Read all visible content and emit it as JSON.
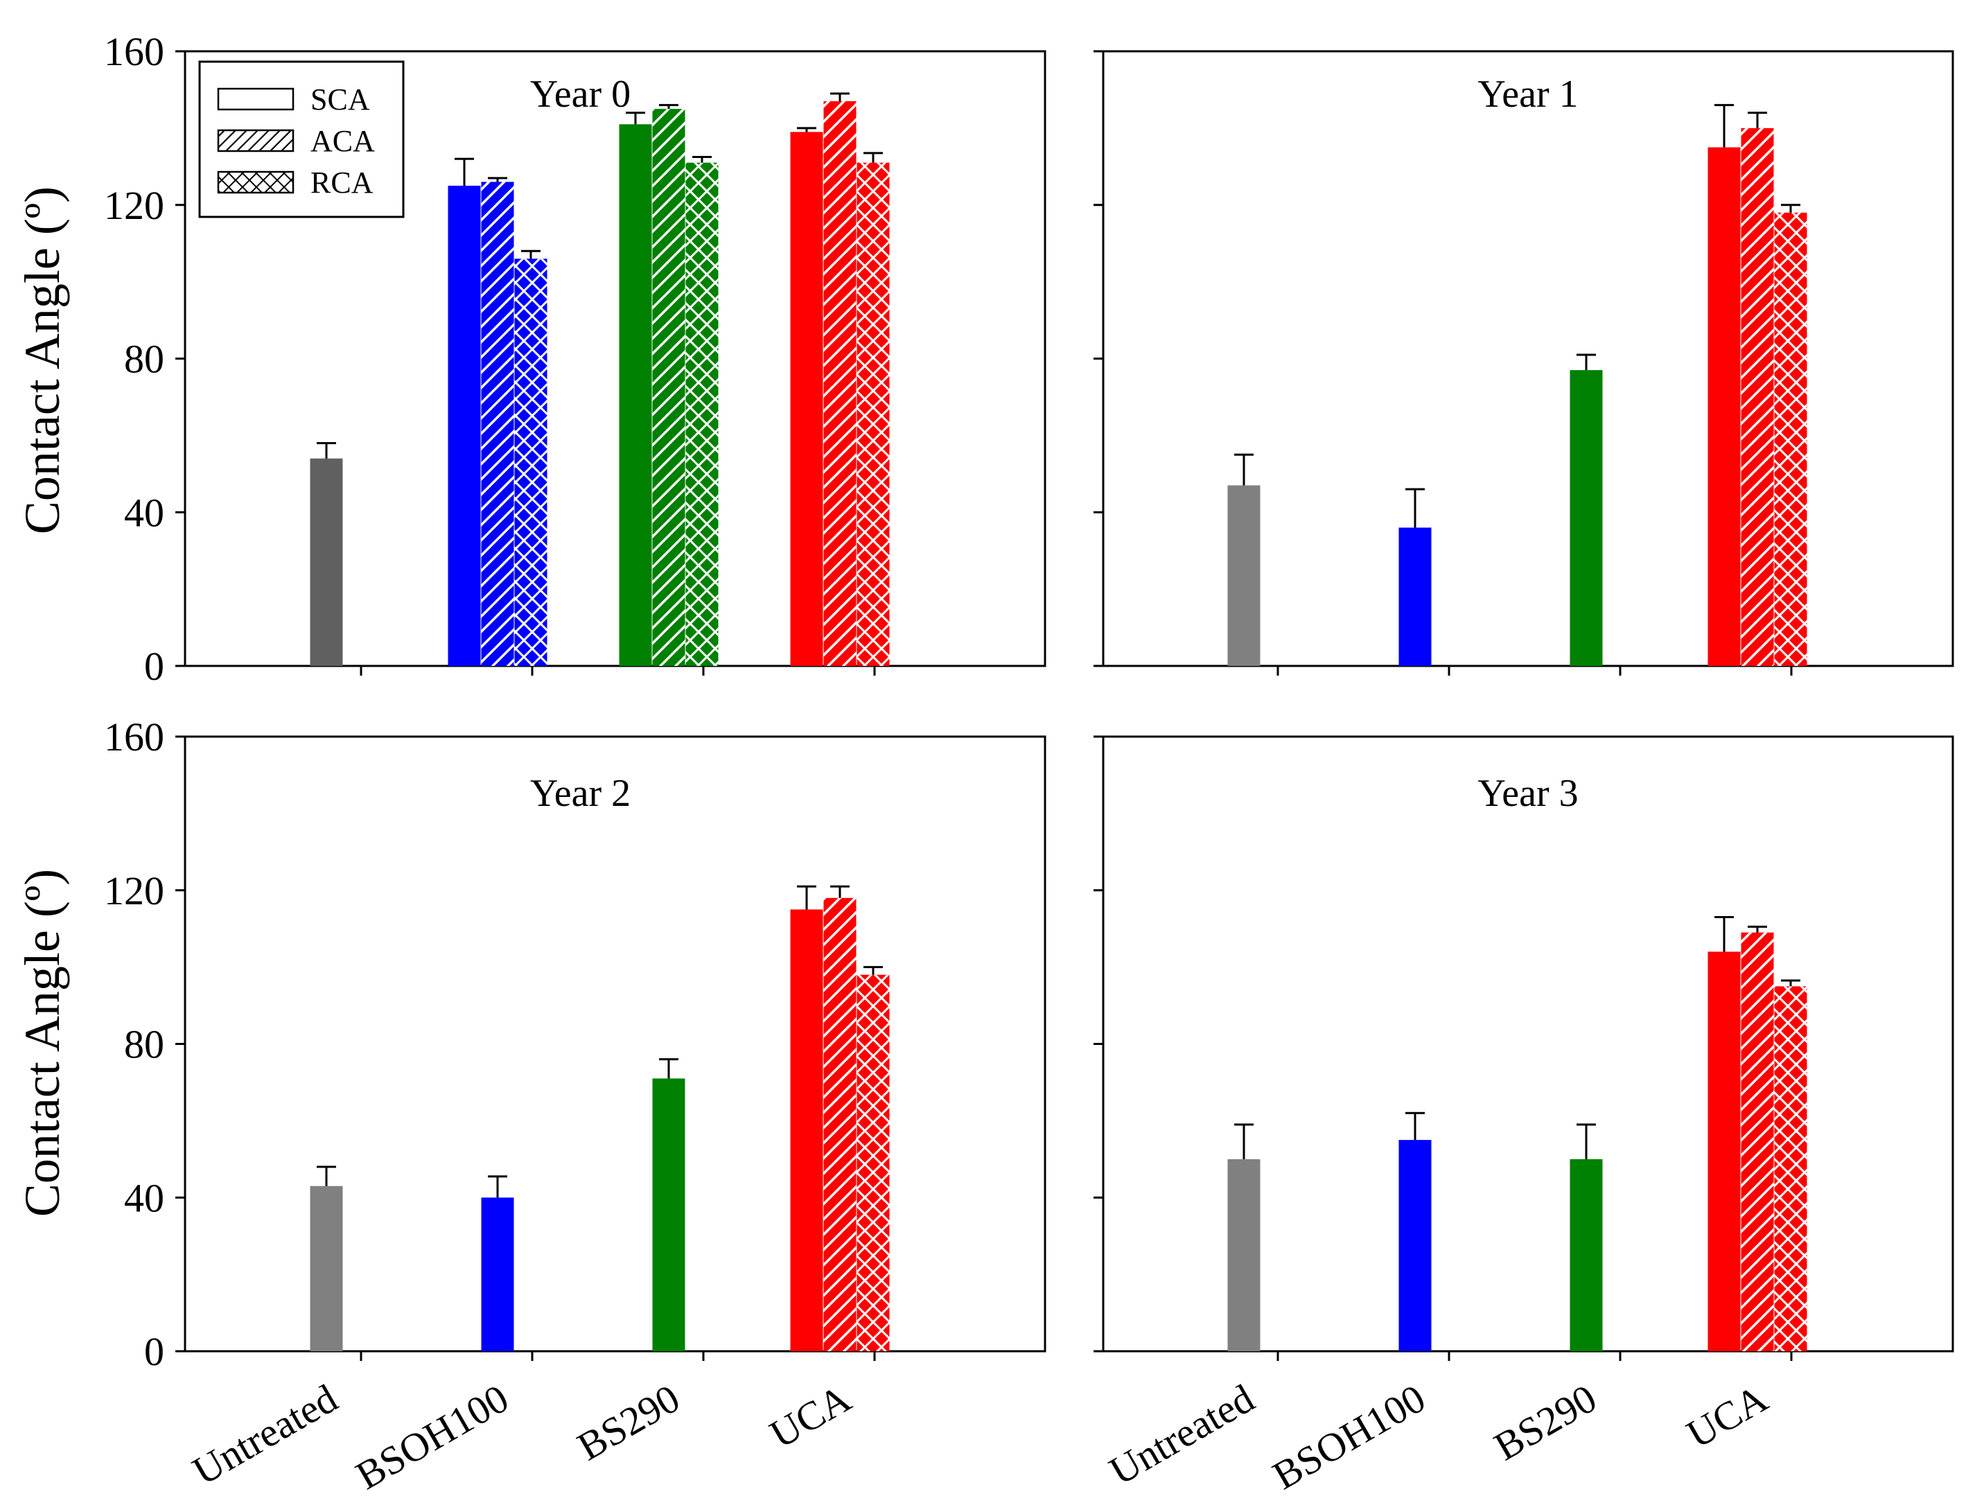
{
  "chart_data": {
    "type": "bar",
    "ylabel": "Contact Angle (º)",
    "ylim": [
      0,
      160
    ],
    "yticks": [
      0,
      40,
      80,
      120,
      160
    ],
    "categories": [
      "Untreated",
      "BSOH100",
      "BS290",
      "UCA"
    ],
    "category_colors": [
      "#808080",
      "#0000ff",
      "#008000",
      "#ff0000"
    ],
    "untreated_year0_color": "#606060",
    "legend": {
      "position": "top-left",
      "entries": [
        {
          "label": "SCA",
          "pattern": "none"
        },
        {
          "label": "ACA",
          "pattern": "diagonal"
        },
        {
          "label": "RCA",
          "pattern": "crosshatch"
        }
      ]
    },
    "panels": [
      {
        "title": "Year 0",
        "bars": [
          {
            "category": "Untreated",
            "measure": "SCA",
            "value": 54,
            "error": 4
          },
          {
            "category": "BSOH100",
            "measure": "SCA",
            "value": 125,
            "error": 7
          },
          {
            "category": "BSOH100",
            "measure": "ACA",
            "value": 126,
            "error": 1
          },
          {
            "category": "BSOH100",
            "measure": "RCA",
            "value": 106,
            "error": 2
          },
          {
            "category": "BS290",
            "measure": "SCA",
            "value": 141,
            "error": 3
          },
          {
            "category": "BS290",
            "measure": "ACA",
            "value": 145,
            "error": 1
          },
          {
            "category": "BS290",
            "measure": "RCA",
            "value": 131,
            "error": 1.5
          },
          {
            "category": "UCA",
            "measure": "SCA",
            "value": 139,
            "error": 1
          },
          {
            "category": "UCA",
            "measure": "ACA",
            "value": 147,
            "error": 2
          },
          {
            "category": "UCA",
            "measure": "RCA",
            "value": 131,
            "error": 2.5
          }
        ]
      },
      {
        "title": "Year 1",
        "bars": [
          {
            "category": "Untreated",
            "measure": "SCA",
            "value": 47,
            "error": 8
          },
          {
            "category": "BSOH100",
            "measure": "SCA",
            "value": 36,
            "error": 10
          },
          {
            "category": "BS290",
            "measure": "SCA",
            "value": 77,
            "error": 4
          },
          {
            "category": "UCA",
            "measure": "SCA",
            "value": 135,
            "error": 11
          },
          {
            "category": "UCA",
            "measure": "ACA",
            "value": 140,
            "error": 4
          },
          {
            "category": "UCA",
            "measure": "RCA",
            "value": 118,
            "error": 2
          }
        ]
      },
      {
        "title": "Year 2",
        "bars": [
          {
            "category": "Untreated",
            "measure": "SCA",
            "value": 43,
            "error": 5
          },
          {
            "category": "BSOH100",
            "measure": "SCA",
            "value": 40,
            "error": 5.5
          },
          {
            "category": "BS290",
            "measure": "SCA",
            "value": 71,
            "error": 5
          },
          {
            "category": "UCA",
            "measure": "SCA",
            "value": 115,
            "error": 6
          },
          {
            "category": "UCA",
            "measure": "ACA",
            "value": 118,
            "error": 3
          },
          {
            "category": "UCA",
            "measure": "RCA",
            "value": 98,
            "error": 2
          }
        ]
      },
      {
        "title": "Year 3",
        "bars": [
          {
            "category": "Untreated",
            "measure": "SCA",
            "value": 50,
            "error": 9
          },
          {
            "category": "BSOH100",
            "measure": "SCA",
            "value": 55,
            "error": 7
          },
          {
            "category": "BS290",
            "measure": "SCA",
            "value": 50,
            "error": 9
          },
          {
            "category": "UCA",
            "measure": "SCA",
            "value": 104,
            "error": 9
          },
          {
            "category": "UCA",
            "measure": "ACA",
            "value": 109,
            "error": 1.5
          },
          {
            "category": "UCA",
            "measure": "RCA",
            "value": 95,
            "error": 1.5
          }
        ]
      }
    ]
  }
}
